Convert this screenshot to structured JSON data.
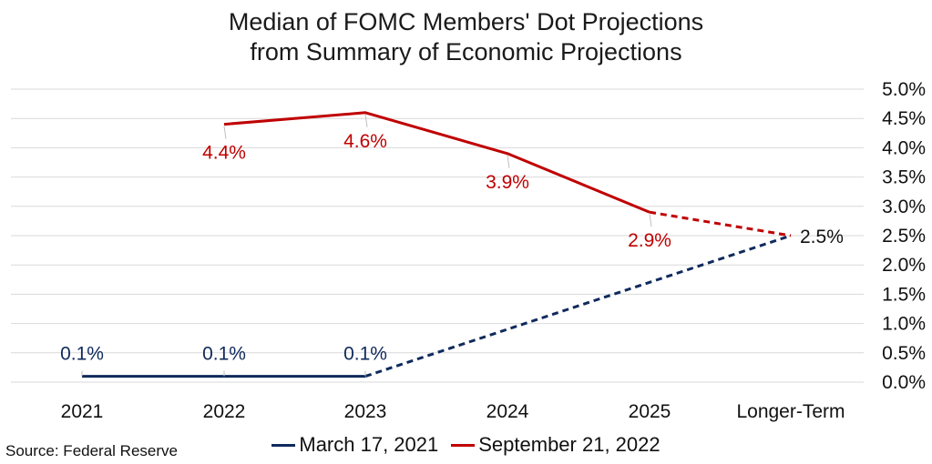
{
  "chart_data": {
    "type": "line",
    "title": "Median of FOMC Members' Dot Projections",
    "subtitle": "from Summary of Economic Projections",
    "categories": [
      "2021",
      "2022",
      "2023",
      "2024",
      "2025",
      "Longer-Term"
    ],
    "ylim": [
      0,
      5
    ],
    "yticks": [
      "0.0%",
      "0.5%",
      "1.0%",
      "1.5%",
      "2.0%",
      "2.5%",
      "3.0%",
      "3.5%",
      "4.0%",
      "4.5%",
      "5.0%"
    ],
    "y_axis_position": "right",
    "grid": true,
    "legend_position": "bottom",
    "series": [
      {
        "name": "March 17, 2021",
        "color": "#0f2a5c",
        "values": [
          0.1,
          0.1,
          0.1,
          null,
          null,
          2.5
        ],
        "dashed_from_index": 2,
        "labels": [
          "0.1%",
          "0.1%",
          "0.1%",
          null,
          null,
          null
        ]
      },
      {
        "name": "September 21, 2022",
        "color": "#c00000",
        "values": [
          null,
          4.4,
          4.6,
          3.9,
          2.9,
          2.5
        ],
        "dashed_from_index": 4,
        "labels": [
          null,
          "4.4%",
          "4.6%",
          "3.9%",
          "2.9%",
          null
        ]
      }
    ],
    "shared_label": {
      "text": "2.5%",
      "index": 5,
      "value": 2.5,
      "color": "#111111"
    }
  },
  "source": "Source: Federal Reserve"
}
